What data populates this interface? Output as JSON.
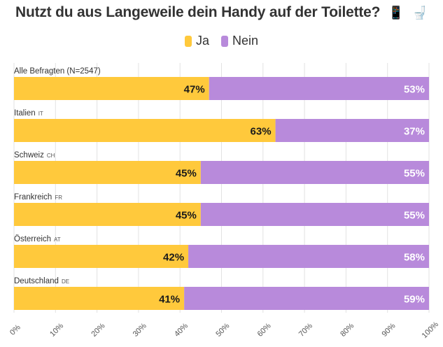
{
  "title": "Nutzt du aus Langeweile dein Handy auf der Toilette?",
  "title_icons": [
    "📱",
    "🚽"
  ],
  "legend": [
    {
      "label": "Ja",
      "color": "#FFC93C"
    },
    {
      "label": "Nein",
      "color": "#B88ADB"
    }
  ],
  "chart_data": {
    "type": "bar",
    "orientation": "horizontal",
    "stacked": true,
    "categories": [
      {
        "label": "Alle Befragten (N=2547)",
        "code": ""
      },
      {
        "label": "Italien",
        "code": "IT"
      },
      {
        "label": "Schweiz",
        "code": "CH"
      },
      {
        "label": "Frankreich",
        "code": "FR"
      },
      {
        "label": "Österreich",
        "code": "AT"
      },
      {
        "label": "Deutschland",
        "code": "DE"
      }
    ],
    "series": [
      {
        "name": "Ja",
        "color": "#FFC93C",
        "values": [
          47,
          63,
          45,
          45,
          42,
          41
        ],
        "labels": [
          "47%",
          "63%",
          "45%",
          "45%",
          "42%",
          "41%"
        ]
      },
      {
        "name": "Nein",
        "color": "#B88ADB",
        "values": [
          53,
          37,
          55,
          55,
          58,
          59
        ],
        "labels": [
          "53%",
          "37%",
          "55%",
          "55%",
          "58%",
          "59%"
        ]
      }
    ],
    "xlim": [
      0,
      100
    ],
    "x_ticks": [
      "0%",
      "10%",
      "20%",
      "30%",
      "40%",
      "50%",
      "60%",
      "70%",
      "80%",
      "90%",
      "100%"
    ],
    "grid": true,
    "legend_position": "top"
  }
}
